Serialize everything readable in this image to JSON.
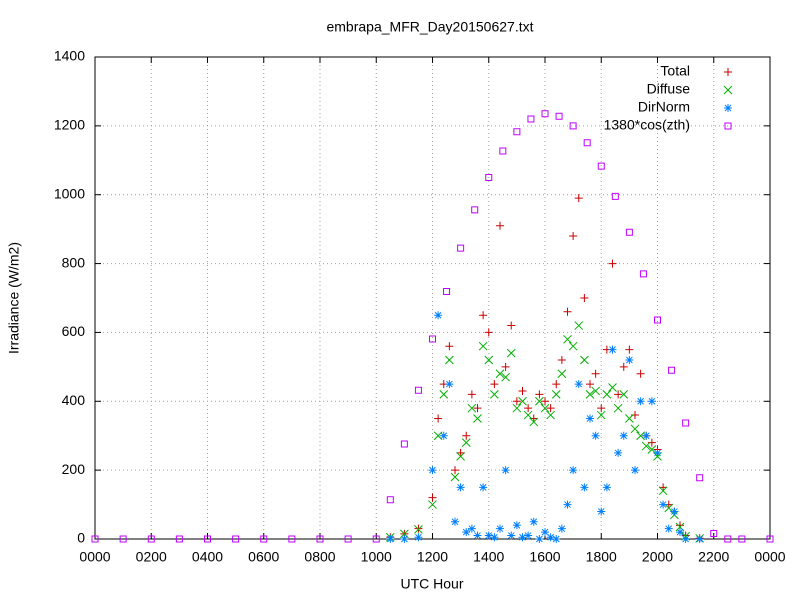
{
  "chart_data": {
    "type": "scatter",
    "title": "embrapa_MFR_Day20150627.txt",
    "xlabel": "UTC Hour",
    "ylabel": "Irradiance (W/m2)",
    "xlim": [
      0,
      24
    ],
    "ylim": [
      0,
      1400
    ],
    "xticks": [
      {
        "value": 0,
        "label": "0000"
      },
      {
        "value": 2,
        "label": "0200"
      },
      {
        "value": 4,
        "label": "0400"
      },
      {
        "value": 6,
        "label": "0600"
      },
      {
        "value": 8,
        "label": "0800"
      },
      {
        "value": 10,
        "label": "1000"
      },
      {
        "value": 12,
        "label": "1200"
      },
      {
        "value": 14,
        "label": "1400"
      },
      {
        "value": 16,
        "label": "1600"
      },
      {
        "value": 18,
        "label": "1800"
      },
      {
        "value": 20,
        "label": "2000"
      },
      {
        "value": 22,
        "label": "2200"
      },
      {
        "value": 24,
        "label": "0000"
      }
    ],
    "yticks": [
      0,
      200,
      400,
      600,
      800,
      1000,
      1200,
      1400
    ],
    "grid": true,
    "legend": "top-right",
    "series": [
      {
        "name": "Total",
        "color": "#cc0000",
        "marker": "plus",
        "x": [
          10.5,
          11,
          11.5,
          12,
          12.2,
          12.4,
          12.6,
          12.8,
          13,
          13.2,
          13.4,
          13.6,
          13.8,
          14,
          14.2,
          14.4,
          14.6,
          14.8,
          15,
          15.2,
          15.4,
          15.6,
          15.8,
          16,
          16.2,
          16.4,
          16.6,
          16.8,
          17,
          17.2,
          17.4,
          17.6,
          17.8,
          18,
          18.2,
          18.4,
          18.6,
          18.8,
          19,
          19.2,
          19.4,
          19.6,
          19.8,
          20,
          20.2,
          20.4,
          20.6,
          20.8,
          21,
          21.5
        ],
        "values": [
          5,
          15,
          30,
          120,
          350,
          450,
          560,
          200,
          250,
          300,
          420,
          380,
          650,
          600,
          450,
          910,
          500,
          620,
          400,
          430,
          380,
          350,
          420,
          400,
          380,
          450,
          520,
          660,
          880,
          990,
          700,
          450,
          480,
          380,
          550,
          800,
          420,
          500,
          550,
          360,
          480,
          300,
          280,
          260,
          150,
          100,
          80,
          40,
          10,
          2
        ]
      },
      {
        "name": "Diffuse",
        "color": "#00b000",
        "marker": "cross",
        "x": [
          10.5,
          11,
          11.5,
          12,
          12.2,
          12.4,
          12.6,
          12.8,
          13,
          13.2,
          13.4,
          13.6,
          13.8,
          14,
          14.2,
          14.4,
          14.6,
          14.8,
          15,
          15.2,
          15.4,
          15.6,
          15.8,
          16,
          16.2,
          16.4,
          16.6,
          16.8,
          17,
          17.2,
          17.4,
          17.6,
          17.8,
          18,
          18.2,
          18.4,
          18.6,
          18.8,
          19,
          19.2,
          19.4,
          19.6,
          19.8,
          20,
          20.2,
          20.4,
          20.6,
          20.8,
          21,
          21.5
        ],
        "values": [
          5,
          15,
          28,
          100,
          300,
          420,
          520,
          180,
          240,
          280,
          380,
          350,
          560,
          520,
          420,
          480,
          470,
          540,
          380,
          400,
          360,
          340,
          400,
          380,
          360,
          420,
          480,
          580,
          560,
          620,
          520,
          420,
          430,
          360,
          420,
          440,
          380,
          420,
          350,
          320,
          300,
          270,
          260,
          240,
          140,
          90,
          70,
          35,
          8,
          2
        ]
      },
      {
        "name": "DirNorm",
        "color": "#0080ff",
        "marker": "star",
        "x": [
          10.5,
          11,
          11.5,
          12,
          12.2,
          12.4,
          12.6,
          12.8,
          13,
          13.2,
          13.4,
          13.6,
          13.8,
          14,
          14.2,
          14.4,
          14.6,
          14.8,
          15,
          15.2,
          15.4,
          15.6,
          15.8,
          16,
          16.2,
          16.4,
          16.6,
          16.8,
          17,
          17.2,
          17.4,
          17.6,
          17.8,
          18,
          18.2,
          18.4,
          18.6,
          18.8,
          19,
          19.2,
          19.4,
          19.6,
          19.8,
          20,
          20.2,
          20.4,
          20.6,
          20.8,
          21,
          21.5
        ],
        "values": [
          0,
          0,
          5,
          200,
          650,
          300,
          450,
          50,
          150,
          20,
          30,
          10,
          150,
          10,
          5,
          30,
          200,
          10,
          40,
          5,
          10,
          50,
          0,
          20,
          5,
          0,
          30,
          100,
          200,
          450,
          150,
          350,
          300,
          80,
          150,
          550,
          250,
          300,
          520,
          200,
          400,
          300,
          400,
          250,
          100,
          30,
          80,
          20,
          0,
          0
        ]
      },
      {
        "name": "1380*cos(zth)",
        "color": "#c000ff",
        "marker": "square",
        "x": [
          0,
          1,
          2,
          3,
          4,
          5,
          6,
          7,
          8,
          9,
          10,
          10.5,
          11,
          11.5,
          12,
          12.5,
          13,
          13.5,
          14,
          14.5,
          15,
          15.5,
          16,
          16.5,
          17,
          17.5,
          18,
          18.5,
          19,
          19.5,
          20,
          20.5,
          21,
          21.5,
          22,
          22.5,
          23,
          24
        ],
        "values": [
          0,
          0,
          0,
          0,
          0,
          0,
          0,
          0,
          0,
          0,
          0,
          114,
          276,
          432,
          581,
          719,
          845,
          956,
          1050,
          1127,
          1183,
          1220,
          1235,
          1228,
          1200,
          1151,
          1083,
          995,
          891,
          770,
          636,
          490,
          337,
          178,
          16,
          0,
          0,
          0
        ]
      }
    ]
  }
}
